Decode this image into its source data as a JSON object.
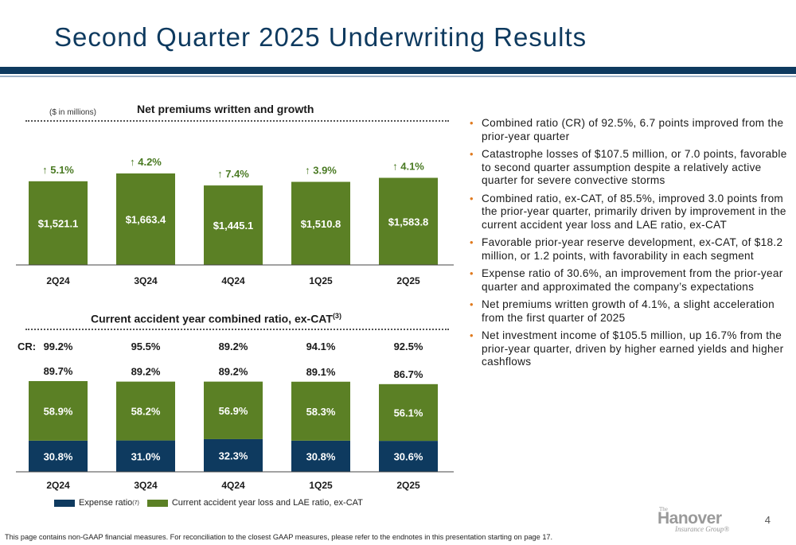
{
  "page": {
    "title": "Second Quarter 2025 Underwriting Results",
    "units_note": "($ in millions)",
    "page_number": "4",
    "footnote": "This page contains non-GAAP financial measures. For reconciliation to the closest GAAP measures, please refer to the endnotes in this presentation starting on page 17.",
    "logo": {
      "the": "The",
      "name": "Hanover",
      "sub": "Insurance Group®"
    }
  },
  "colors": {
    "navy": "#0e3a5f",
    "green": "#5b8025",
    "growth_green": "#4a7a23",
    "bullet_orange": "#e07b20"
  },
  "chart_data": [
    {
      "type": "bar",
      "title": "Net premiums written and growth",
      "categories": [
        "2Q24",
        "3Q24",
        "4Q24",
        "1Q25",
        "2Q25"
      ],
      "values": [
        1521.1,
        1663.4,
        1445.1,
        1510.8,
        1583.8
      ],
      "value_labels": [
        "$1,521.1",
        "$1,663.4",
        "$1,445.1",
        "$1,510.8",
        "$1,583.8"
      ],
      "growth_labels": [
        "↑ 5.1%",
        "↑ 4.2%",
        "↑ 7.4%",
        "↑ 3.9%",
        "↑ 4.1%"
      ],
      "growth_values": [
        5.1,
        4.2,
        7.4,
        3.9,
        4.1
      ],
      "unit": "$ in millions"
    },
    {
      "type": "bar",
      "stacked": true,
      "title": "Current accident year combined ratio, ex-CAT",
      "title_superscript": "(3)",
      "categories": [
        "2Q24",
        "3Q24",
        "4Q24",
        "1Q25",
        "2Q25"
      ],
      "series": [
        {
          "name": "Expense ratio",
          "superscript": "(7)",
          "values": [
            30.8,
            31.0,
            32.3,
            30.8,
            30.6
          ],
          "labels": [
            "30.8%",
            "31.0%",
            "32.3%",
            "30.8%",
            "30.6%"
          ]
        },
        {
          "name": "Current accident year loss and LAE ratio, ex-CAT",
          "values": [
            58.9,
            58.2,
            56.9,
            58.3,
            56.1
          ],
          "labels": [
            "58.9%",
            "58.2%",
            "56.9%",
            "58.3%",
            "56.1%"
          ]
        }
      ],
      "totals": [
        89.7,
        89.2,
        89.2,
        89.1,
        86.7
      ],
      "total_labels": [
        "89.7%",
        "89.2%",
        "89.2%",
        "89.1%",
        "86.7%"
      ],
      "cr_prefix": "CR:",
      "combined_ratio": [
        99.2,
        95.5,
        89.2,
        94.1,
        92.5
      ],
      "combined_ratio_labels": [
        "99.2%",
        "95.5%",
        "89.2%",
        "94.1%",
        "92.5%"
      ]
    }
  ],
  "bullets": [
    "Combined ratio (CR) of 92.5%, 6.7 points improved from the prior-year quarter",
    "Catastrophe losses of $107.5 million, or 7.0 points, favorable to second quarter assumption despite a relatively active quarter for severe convective storms",
    "Combined ratio, ex-CAT, of 85.5%, improved 3.0 points from the prior-year quarter, primarily driven by improvement in the current accident year loss and LAE ratio, ex-CAT",
    "Favorable prior-year reserve development, ex-CAT, of $18.2 million, or 1.2 points, with favorability in each segment",
    "Expense ratio of 30.6%, an improvement from the prior-year quarter and approximated the company’s expectations",
    "Net premiums written growth of 4.1%, a slight acceleration from the first quarter of 2025",
    "Net investment income of $105.5 million, up 16.7% from the prior-year quarter, driven by higher earned yields and higher cashflows"
  ],
  "bullet_marker": "•"
}
